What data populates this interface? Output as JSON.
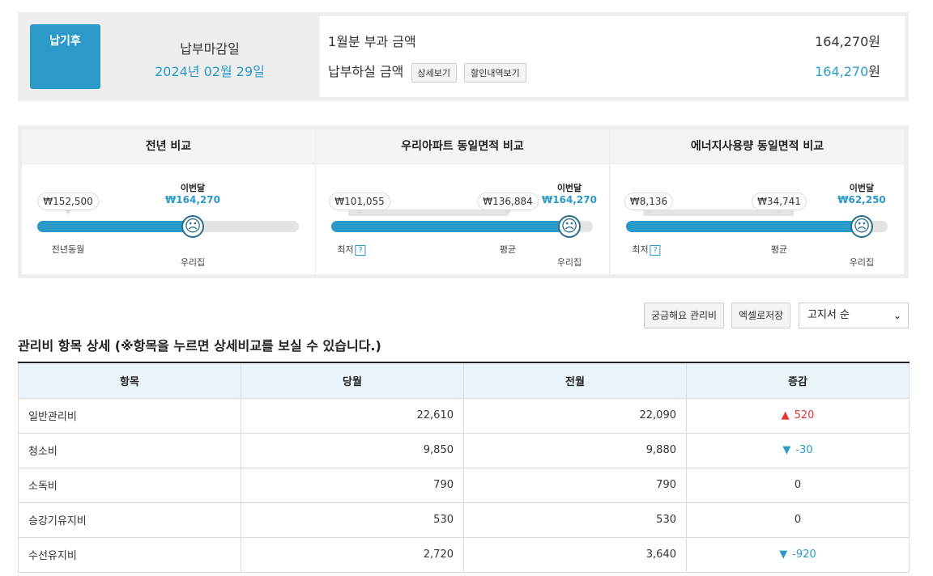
{
  "summary": {
    "badge": "납기후",
    "due_label": "납부마감일",
    "due_date": "2024년 02월 29일",
    "charge_label": "1월분 부과 금액",
    "charge_amount": "164,270",
    "pay_label": "납부하실 금액",
    "pay_amount": "164,270",
    "unit": "원",
    "detail_btn": "상세보기",
    "discount_btn": "할인내역보기"
  },
  "comparisons": [
    {
      "title": "전년 비교",
      "this_month_label": "이번달",
      "this_month_value": "₩164,270",
      "min_value": "₩152,500",
      "min_label": "전년동월",
      "our_label": "우리집",
      "fill_fraction": 0.595
    },
    {
      "title": "우리아파트 동일면적 비교",
      "this_month_label": "이번달",
      "this_month_value": "₩164,270",
      "min_value": "₩101,055",
      "avg_value": "₩136,884",
      "min_label": "최저",
      "avg_label": "평균",
      "our_label": "우리집",
      "fill_fraction": 0.91
    },
    {
      "title": "에너지사용량 동일면적 비교",
      "this_month_label": "이번달",
      "this_month_value": "₩62,250",
      "min_value": "₩8,136",
      "avg_value": "₩34,741",
      "min_label": "최저",
      "avg_label": "평균",
      "our_label": "우리집",
      "fill_fraction": 0.91
    }
  ],
  "help_glyph": "?",
  "face_glyph": "☹",
  "toolbar": {
    "faq_btn": "궁금해요 관리비",
    "excel_btn": "엑셀로저장",
    "sort_value": "고지서 순"
  },
  "section_title": "관리비 항목 상세 (※항목을 누르면 상세비교를 보실 수 있습니다.)",
  "table": {
    "headers": [
      "항목",
      "당월",
      "전월",
      "증감"
    ],
    "rows": [
      {
        "item": "일반관리비",
        "current": "22,610",
        "previous": "22,090",
        "change": "520",
        "dir": "up"
      },
      {
        "item": "청소비",
        "current": "9,850",
        "previous": "9,880",
        "change": "-30",
        "dir": "down"
      },
      {
        "item": "소독비",
        "current": "790",
        "previous": "790",
        "change": "0",
        "dir": "none"
      },
      {
        "item": "승강기유지비",
        "current": "530",
        "previous": "530",
        "change": "0",
        "dir": "none"
      },
      {
        "item": "수선유지비",
        "current": "2,720",
        "previous": "3,640",
        "change": "-920",
        "dir": "down"
      }
    ]
  },
  "colors": {
    "accent": "#2b9ac8",
    "increase": "#e3342f",
    "header_bg": "#eaf5fb"
  }
}
